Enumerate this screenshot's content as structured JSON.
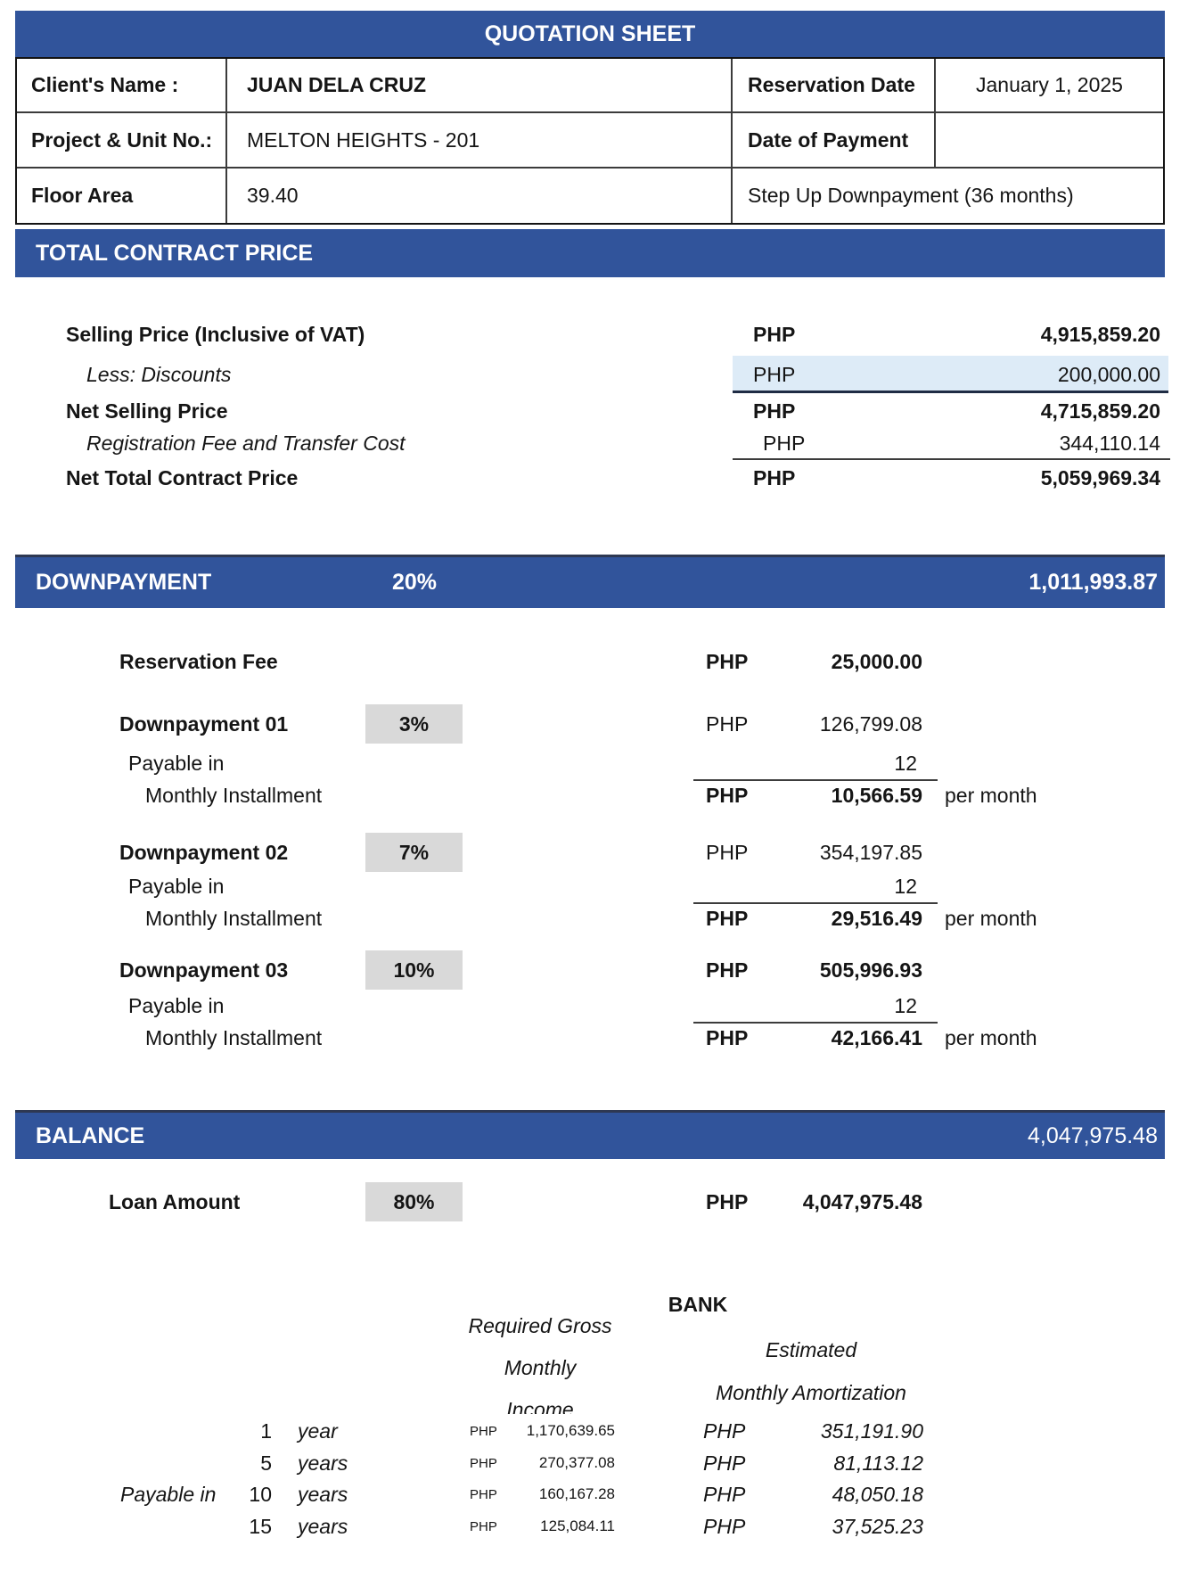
{
  "header": {
    "title": "QUOTATION SHEET"
  },
  "client_info": {
    "client_name_label": "Client's Name :",
    "client_name": "JUAN DELA CRUZ",
    "reservation_date_label": "Reservation Date",
    "reservation_date": "January 1, 2025",
    "project_label": "Project & Unit No.:",
    "project": "MELTON HEIGHTS - 201",
    "payment_date_label": "Date of Payment",
    "payment_date": "",
    "floor_area_label": "Floor Area",
    "floor_area": "39.40",
    "payment_scheme": "Step Up Downpayment (36 months)"
  },
  "total_contract_price": {
    "section_title": "TOTAL CONTRACT PRICE",
    "rows": [
      {
        "label": "Selling Price (Inclusive of VAT)",
        "currency": "PHP",
        "amount": "4,915,859.20"
      },
      {
        "label": "Less: Discounts",
        "currency": "PHP",
        "amount": "200,000.00"
      },
      {
        "label": "Net Selling Price",
        "currency": "PHP",
        "amount": "4,715,859.20"
      },
      {
        "label": "Registration Fee and Transfer Cost",
        "currency": "PHP",
        "amount": "344,110.14"
      },
      {
        "label": "Net Total Contract Price",
        "currency": "PHP",
        "amount": "5,059,969.34"
      }
    ]
  },
  "downpayment": {
    "section_title": "DOWNPAYMENT",
    "percent": "20%",
    "total": "1,011,993.87",
    "reservation_fee": {
      "label": "Reservation Fee",
      "currency": "PHP",
      "amount": "25,000.00"
    },
    "items": [
      {
        "label": "Downpayment 01",
        "percent": "3%",
        "currency": "PHP",
        "amount": "126,799.08",
        "payable_label": "Payable in",
        "months": "12",
        "monthly_label": "Monthly Installment",
        "monthly_currency": "PHP",
        "monthly_amount": "10,566.59",
        "per_month_label": "per month"
      },
      {
        "label": "Downpayment 02",
        "percent": "7%",
        "currency": "PHP",
        "amount": "354,197.85",
        "payable_label": "Payable in",
        "months": "12",
        "monthly_label": "Monthly Installment",
        "monthly_currency": "PHP",
        "monthly_amount": "29,516.49",
        "per_month_label": "per month"
      },
      {
        "label": "Downpayment 03",
        "percent": "10%",
        "currency": "PHP",
        "amount": "505,996.93",
        "payable_label": "Payable in",
        "months": "12",
        "monthly_label": "Monthly Installment",
        "monthly_currency": "PHP",
        "monthly_amount": "42,166.41",
        "per_month_label": "per month"
      }
    ]
  },
  "balance": {
    "section_title": "BALANCE",
    "total": "4,047,975.48",
    "loan": {
      "label": "Loan Amount",
      "percent": "80%",
      "currency": "PHP",
      "amount": "4,047,975.48"
    }
  },
  "bank": {
    "title": "BANK",
    "gross_income_header_lines": [
      "Required Gross",
      "Monthly",
      "Income"
    ],
    "amortization_header_lines": [
      "Estimated",
      "Monthly Amortization"
    ],
    "payable_label": "Payable in",
    "rows": [
      {
        "term": "1",
        "unit": "year",
        "currency_small": "PHP",
        "gross_income": "1,170,639.65",
        "currency": "PHP",
        "amortization": "351,191.90"
      },
      {
        "term": "5",
        "unit": "years",
        "currency_small": "PHP",
        "gross_income": "270,377.08",
        "currency": "PHP",
        "amortization": "81,113.12"
      },
      {
        "term": "10",
        "unit": "years",
        "currency_small": "PHP",
        "gross_income": "160,167.28",
        "currency": "PHP",
        "amortization": "48,050.18"
      },
      {
        "term": "15",
        "unit": "years",
        "currency_small": "PHP",
        "gross_income": "125,084.11",
        "currency": "PHP",
        "amortization": "37,525.23"
      }
    ]
  },
  "colors": {
    "band_blue": "#31549B",
    "highlight_blue": "#DDEBF7",
    "percent_box_gray": "#D9D9D9"
  }
}
